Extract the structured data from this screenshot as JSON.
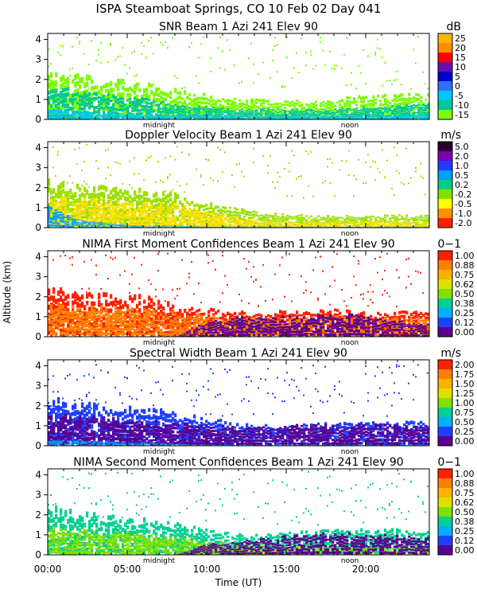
{
  "figure": {
    "title": "ISPA Steamboat Springs, CO   10 Feb 02 Day 041",
    "ylabel": "Altitude (km)",
    "xlabel": "Time (UT)",
    "x_ticks": [
      "00:00",
      "05:00",
      "10:00",
      "15:00",
      "20:00"
    ],
    "y_ticks": [
      "0",
      "1",
      "2",
      "3",
      "4"
    ],
    "markers": [
      "midnight",
      "noon"
    ]
  },
  "chart_data": [
    {
      "type": "heatmap",
      "title": "SNR Beam 1 Azi 241 Elev 90",
      "unit": "dB",
      "xlim": [
        0,
        24
      ],
      "ylim": [
        0,
        4.3
      ],
      "colorbar": {
        "labels": [
          "25",
          "20",
          "15",
          "10",
          "5",
          "0",
          "-5",
          "-10",
          "-15"
        ],
        "colors": [
          "#FFB400",
          "#FF8C00",
          "#FF0000",
          "#6A0DAD",
          "#0000CD",
          "#2F6FFF",
          "#00C8FF",
          "#00C896",
          "#7CFC00"
        ]
      },
      "layers": [
        {
          "name": "bulk",
          "color": "#7CFC00",
          "top": [
            2.2,
            2.1,
            1.9,
            1.7,
            1.5,
            1.2,
            1.0,
            0.9,
            0.9,
            1.0,
            1.1,
            1.2,
            1.2
          ]
        },
        {
          "name": "core",
          "color": "#00C896",
          "top": [
            1.6,
            1.4,
            1.2,
            1.0,
            0.8,
            0.6,
            0.5,
            0.5,
            0.5,
            0.5,
            0.6,
            0.7,
            0.7
          ]
        },
        {
          "name": "base",
          "color": "#00C8FF",
          "top": [
            0.5,
            0.4,
            0.3,
            0.25,
            0.2,
            0.2,
            0.2,
            0.2,
            0.2,
            0.2,
            0.2,
            0.25,
            0.3
          ]
        }
      ]
    },
    {
      "type": "heatmap",
      "title": "Doppler Velocity Beam 1 Azi 241 Elev 90",
      "unit": "m/s",
      "xlim": [
        0,
        24
      ],
      "ylim": [
        0,
        4.3
      ],
      "colorbar": {
        "labels": [
          "5.0",
          "2.0",
          "1.0",
          "0.5",
          "0.2",
          "-0.2",
          "-0.5",
          "-1.0",
          "-2.0"
        ],
        "colors": [
          "#2A0030",
          "#7A00B0",
          "#1E3CFF",
          "#00A0FF",
          "#00D080",
          "#80E000",
          "#FFFF00",
          "#FF9000",
          "#FF2000"
        ]
      },
      "layers": [
        {
          "name": "bulk",
          "color": "#9CE000",
          "top": [
            2.3,
            2.1,
            1.9,
            1.8,
            1.6,
            1.2,
            0.9,
            0.7,
            0.6,
            0.6,
            0.6,
            0.6,
            0.6
          ]
        },
        {
          "name": "core",
          "color": "#FFE000",
          "top": [
            1.5,
            1.4,
            1.3,
            1.2,
            1.1,
            0.8,
            0.5,
            0.3,
            0.3,
            0.3,
            0.3,
            0.3,
            0.3
          ]
        },
        {
          "name": "base",
          "color": "#00A0FF",
          "top": [
            1.0,
            0.4,
            0.2,
            0.1,
            0.1,
            0.05,
            0.05,
            0.05,
            0.05,
            0.05,
            0.05,
            0.05,
            0.05
          ]
        }
      ]
    },
    {
      "type": "heatmap",
      "title": "NIMA First Moment Confidences Beam 1 Azi 241 Elev 90",
      "unit": "0−1",
      "xlim": [
        0,
        24
      ],
      "ylim": [
        0,
        4.3
      ],
      "colorbar": {
        "labels": [
          "1.00",
          "0.88",
          "0.75",
          "0.62",
          "0.50",
          "0.38",
          "0.25",
          "0.12",
          "0.00"
        ],
        "colors": [
          "#FF2000",
          "#FF8000",
          "#FFB000",
          "#E0E000",
          "#80E000",
          "#00D090",
          "#00B0FF",
          "#2040FF",
          "#5A0090"
        ]
      },
      "layers": [
        {
          "name": "bulk",
          "color": "#FF2000",
          "top": [
            2.3,
            2.1,
            2.0,
            1.9,
            1.7,
            1.4,
            1.2,
            1.2,
            1.3,
            1.3,
            1.2,
            1.2,
            1.2
          ]
        },
        {
          "name": "core",
          "color": "#FF8000",
          "top": [
            1.6,
            1.5,
            1.4,
            1.3,
            1.2,
            1.0,
            0.9,
            0.9,
            1.0,
            1.0,
            0.9,
            0.9,
            0.9
          ]
        },
        {
          "name": "base",
          "color": "#5A0090",
          "top": [
            0.0,
            0.0,
            0.0,
            0.0,
            0.0,
            0.7,
            0.9,
            0.9,
            1.0,
            1.1,
            1.0,
            0.8,
            0.6
          ]
        }
      ]
    },
    {
      "type": "heatmap",
      "title": "Spectral Width Beam 1 Azi 241 Elev 90",
      "unit": "m/s",
      "xlim": [
        0,
        24
      ],
      "ylim": [
        0,
        4.3
      ],
      "colorbar": {
        "labels": [
          "2.00",
          "1.75",
          "1.50",
          "1.25",
          "1.00",
          "0.75",
          "0.50",
          "0.25",
          "0.00"
        ],
        "colors": [
          "#FF2000",
          "#FF8000",
          "#FFB000",
          "#E0E000",
          "#80E000",
          "#00D090",
          "#00B0FF",
          "#2040FF",
          "#5A0090"
        ]
      },
      "layers": [
        {
          "name": "bulk",
          "color": "#2040FF",
          "top": [
            2.3,
            2.0,
            1.9,
            1.8,
            1.6,
            1.3,
            1.1,
            1.0,
            1.0,
            1.1,
            1.1,
            1.1,
            1.2
          ]
        },
        {
          "name": "core",
          "color": "#5A0090",
          "top": [
            1.5,
            1.4,
            1.3,
            1.2,
            1.1,
            1.0,
            0.9,
            0.9,
            1.0,
            1.0,
            1.0,
            1.0,
            1.0
          ]
        },
        {
          "name": "base",
          "color": "#00B0FF",
          "top": [
            0.3,
            0.25,
            0.2,
            0.15,
            0.1,
            0.05,
            0.05,
            0.05,
            0.05,
            0.05,
            0.05,
            0.05,
            0.05
          ]
        }
      ]
    },
    {
      "type": "heatmap",
      "title": "NIMA Second Moment Confidences Beam 1 Azi 241 Elev 90",
      "unit": "0−1",
      "xlim": [
        0,
        24
      ],
      "ylim": [
        0,
        4.3
      ],
      "colorbar": {
        "labels": [
          "1.00",
          "0.88",
          "0.75",
          "0.62",
          "0.50",
          "0.38",
          "0.25",
          "0.12",
          "0.00"
        ],
        "colors": [
          "#FF2000",
          "#FF8000",
          "#FFB000",
          "#E0E000",
          "#80E000",
          "#00D090",
          "#00B0FF",
          "#2040FF",
          "#5A0090"
        ]
      },
      "layers": [
        {
          "name": "bulk",
          "color": "#00D090",
          "top": [
            2.3,
            2.0,
            1.9,
            1.7,
            1.5,
            1.2,
            1.0,
            1.0,
            1.1,
            1.2,
            1.2,
            1.2,
            1.2
          ]
        },
        {
          "name": "core",
          "color": "#80E000",
          "top": [
            1.3,
            1.2,
            1.1,
            1.0,
            0.9,
            0.7,
            0.5,
            0.4,
            0.4,
            0.4,
            0.4,
            0.4,
            0.4
          ]
        },
        {
          "name": "base",
          "color": "#5A0090",
          "top": [
            0.0,
            0.0,
            0.0,
            0.0,
            0.0,
            0.5,
            0.7,
            0.8,
            1.0,
            1.1,
            1.0,
            0.9,
            0.8
          ]
        }
      ]
    }
  ]
}
